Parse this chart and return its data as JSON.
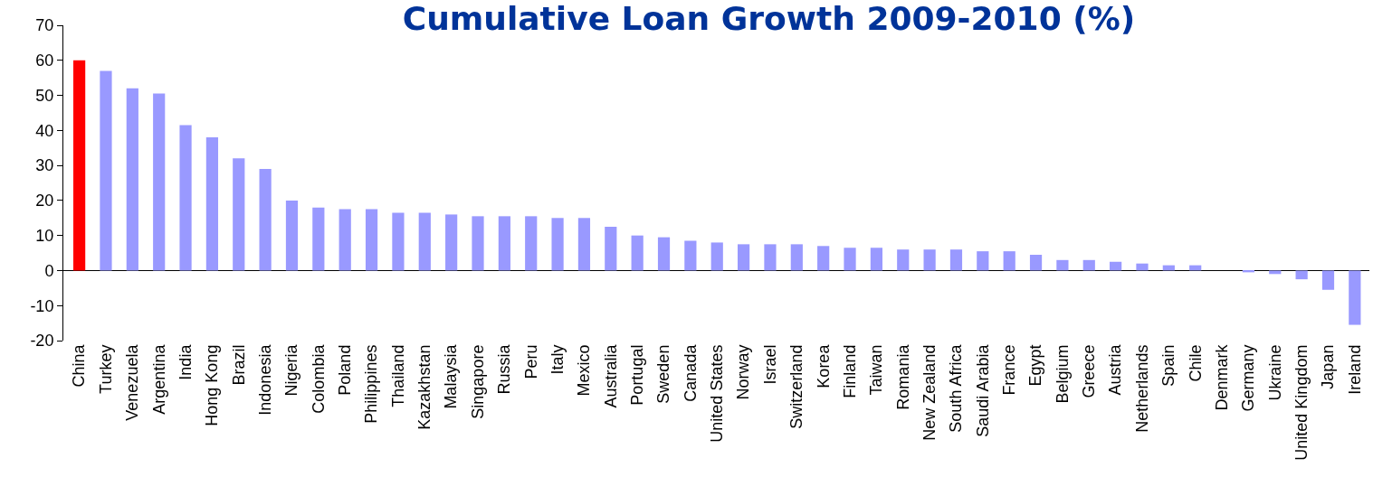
{
  "chart_data": {
    "type": "bar",
    "title": "Cumulative Loan Growth 2009-2010 (%)",
    "categories": [
      "China",
      "Turkey",
      "Venezuela",
      "Argentina",
      "India",
      "Hong Kong",
      "Brazil",
      "Indonesia",
      "Nigeria",
      "Colombia",
      "Poland",
      "Philippines",
      "Thailand",
      "Kazakhstan",
      "Malaysia",
      "Singapore",
      "Russia",
      "Peru",
      "Italy",
      "Mexico",
      "Australia",
      "Portugal",
      "Sweden",
      "Canada",
      "United States",
      "Norway",
      "Israel",
      "Switzerland",
      "Korea",
      "Finland",
      "Taiwan",
      "Romania",
      "New Zealand",
      "South Africa",
      "Saudi Arabia",
      "France",
      "Egypt",
      "Belgium",
      "Greece",
      "Austria",
      "Netherlands",
      "Spain",
      "Chile",
      "Denmark",
      "Germany",
      "Ukraine",
      "United Kingdom",
      "Japan",
      "Ireland"
    ],
    "values": [
      60,
      57,
      52,
      50.5,
      41.5,
      38,
      32,
      29,
      20,
      18,
      17.5,
      17.5,
      16.5,
      16.5,
      16,
      15.5,
      15.5,
      15.5,
      15,
      15,
      12.5,
      10,
      9.5,
      8.5,
      8,
      7.5,
      7.5,
      7.5,
      7,
      6.5,
      6.5,
      6,
      6,
      6,
      5.5,
      5.5,
      4.5,
      3,
      3,
      2.5,
      2,
      1.5,
      1.5,
      0,
      -0.5,
      -1,
      -2.5,
      -5.5,
      -15.5
    ],
    "colors": [
      "#ff0000",
      "#9999ff",
      "#9999ff",
      "#9999ff",
      "#9999ff",
      "#9999ff",
      "#9999ff",
      "#9999ff",
      "#9999ff",
      "#9999ff",
      "#9999ff",
      "#9999ff",
      "#9999ff",
      "#9999ff",
      "#9999ff",
      "#9999ff",
      "#9999ff",
      "#9999ff",
      "#9999ff",
      "#9999ff",
      "#9999ff",
      "#9999ff",
      "#9999ff",
      "#9999ff",
      "#9999ff",
      "#9999ff",
      "#9999ff",
      "#9999ff",
      "#9999ff",
      "#9999ff",
      "#9999ff",
      "#9999ff",
      "#9999ff",
      "#9999ff",
      "#9999ff",
      "#9999ff",
      "#9999ff",
      "#9999ff",
      "#9999ff",
      "#9999ff",
      "#9999ff",
      "#9999ff",
      "#9999ff",
      "#9999ff",
      "#9999ff",
      "#9999ff",
      "#9999ff",
      "#9999ff",
      "#9999ff"
    ],
    "ylim": [
      -20,
      70
    ],
    "yticks": [
      -20,
      -10,
      0,
      10,
      20,
      30,
      40,
      50,
      60,
      70
    ]
  }
}
